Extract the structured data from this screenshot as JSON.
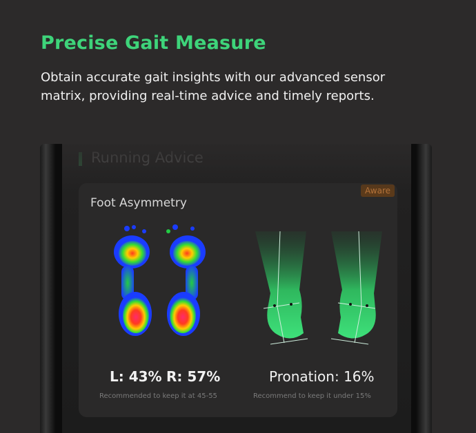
{
  "hero": {
    "title": "Precise Gait Measure",
    "description_line1": "Obtain accurate gait insights with our advanced sensor",
    "description_line2": "matrix, providing real-time advice and timely reports."
  },
  "app": {
    "section_title": "Running Advice",
    "card": {
      "title": "Foot Asymmetry",
      "badge": "Aware",
      "left_metric": "L: 43%",
      "right_metric": "R: 57%",
      "asymmetry_recommendation": "Recommended to keep it at 45-55",
      "pronation_metric": "Pronation: 16%",
      "pronation_recommendation": "Recommend to keep it under 15%"
    }
  },
  "colors": {
    "accent_green": "#3ed47a",
    "badge_orange": "#b7743a"
  }
}
